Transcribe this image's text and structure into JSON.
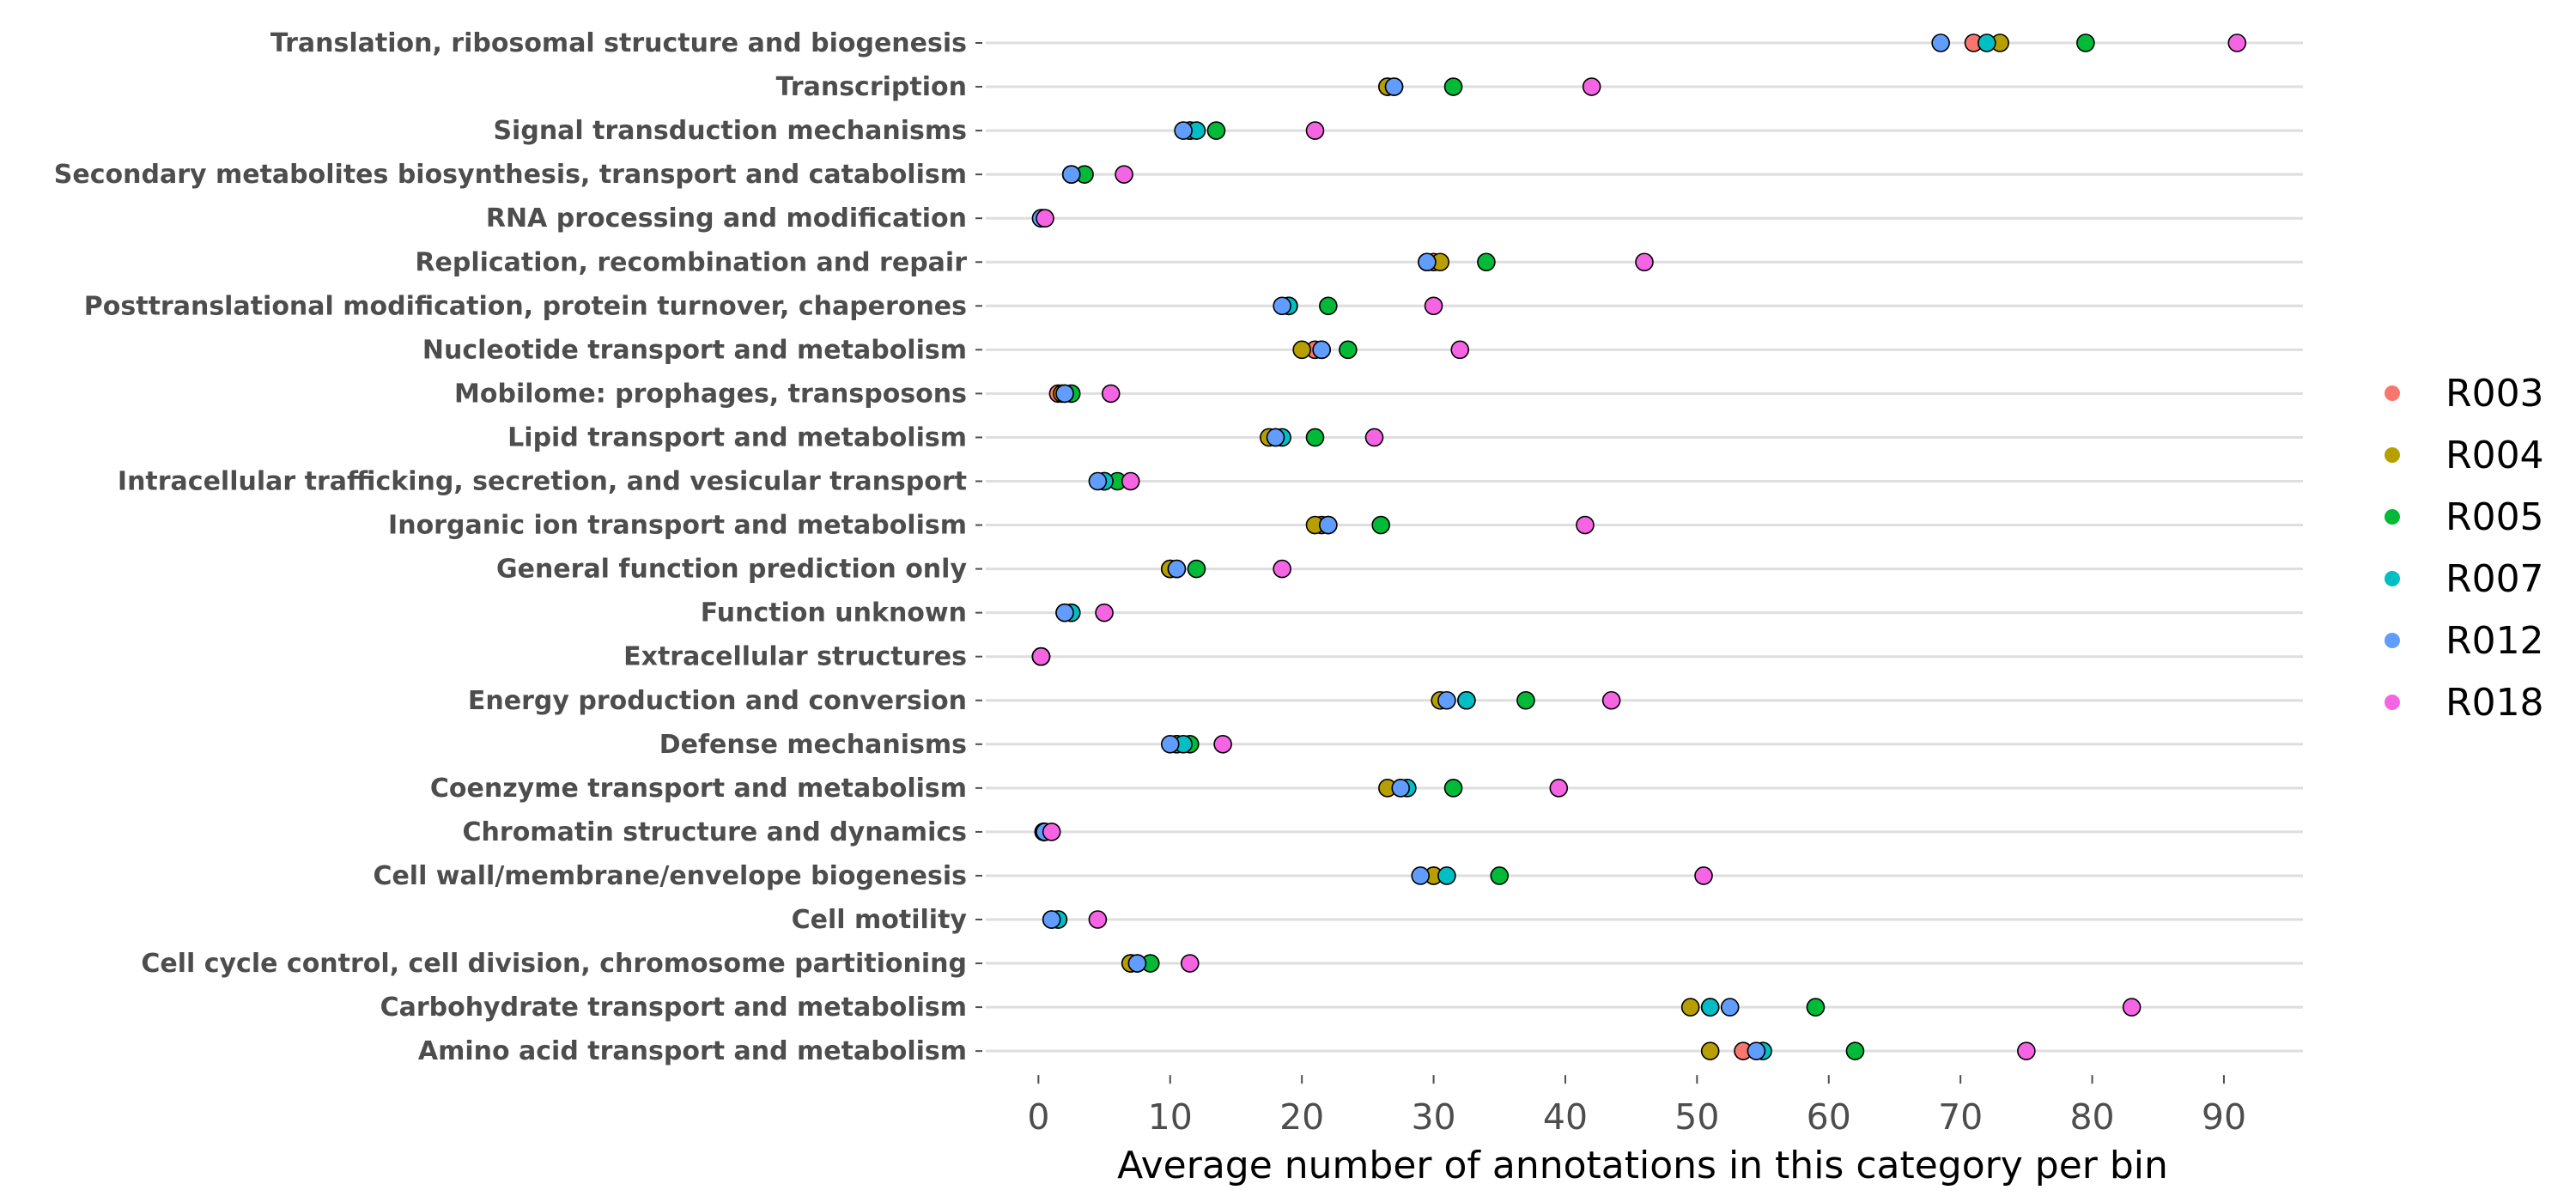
{
  "chart_data": {
    "type": "scatter",
    "xlabel": "Average number of annotations in this category per bin",
    "ylabel": "",
    "xlim": [
      -4,
      96
    ],
    "xticks": [
      0,
      10,
      20,
      30,
      40,
      50,
      60,
      70,
      80,
      90
    ],
    "grid": "horizontal",
    "legend": "right",
    "categories": [
      "Translation, ribosomal structure and biogenesis",
      "Transcription",
      "Signal transduction mechanisms",
      "Secondary metabolites biosynthesis, transport and catabolism",
      "RNA processing and modification",
      "Replication, recombination and repair",
      "Posttranslational modification, protein turnover, chaperones",
      "Nucleotide transport and metabolism",
      "Mobilome: prophages, transposons",
      "Lipid transport and metabolism",
      "Intracellular trafficking, secretion, and vesicular transport",
      "Inorganic ion transport and metabolism",
      "General function prediction only",
      "Function unknown",
      "Extracellular structures",
      "Energy production and conversion",
      "Defense mechanisms",
      "Coenzyme transport and metabolism",
      "Chromatin structure and dynamics",
      "Cell wall/membrane/envelope biogenesis",
      "Cell motility",
      "Cell cycle control, cell division, chromosome partitioning",
      "Carbohydrate transport and metabolism",
      "Amino acid transport and metabolism"
    ],
    "series": [
      {
        "name": "R003",
        "color": "#F8766D",
        "values": [
          71.0,
          26.5,
          11.5,
          2.5,
          0.3,
          30.0,
          19.0,
          21.0,
          1.5,
          18.0,
          5.0,
          21.5,
          10.0,
          2.0,
          0.2,
          32.5,
          10.5,
          27.5,
          0.4,
          30.0,
          1.0,
          7.0,
          51.0,
          53.5
        ]
      },
      {
        "name": "R004",
        "color": "#B79F00",
        "values": [
          73.0,
          26.5,
          11.5,
          2.5,
          0.3,
          30.5,
          19.0,
          20.0,
          1.8,
          17.5,
          5.0,
          21.0,
          10.0,
          2.0,
          0.2,
          30.5,
          10.5,
          26.5,
          0.4,
          30.0,
          1.0,
          7.0,
          49.5,
          51.0
        ]
      },
      {
        "name": "R005",
        "color": "#00BA38",
        "values": [
          79.5,
          31.5,
          13.5,
          3.5,
          0.3,
          34.0,
          22.0,
          23.5,
          2.5,
          21.0,
          6.0,
          26.0,
          12.0,
          2.5,
          0.2,
          37.0,
          11.5,
          31.5,
          0.4,
          35.0,
          1.5,
          8.5,
          59.0,
          62.0
        ]
      },
      {
        "name": "R007",
        "color": "#00BFC4",
        "values": [
          72.0,
          27.0,
          12.0,
          2.5,
          0.3,
          29.5,
          19.0,
          21.5,
          2.0,
          18.5,
          5.0,
          22.0,
          10.5,
          2.5,
          0.2,
          32.5,
          11.0,
          28.0,
          0.4,
          31.0,
          1.5,
          7.5,
          51.0,
          55.0
        ]
      },
      {
        "name": "R012",
        "color": "#619CFF",
        "values": [
          68.5,
          27.0,
          11.0,
          2.5,
          0.2,
          29.5,
          18.5,
          21.5,
          2.0,
          18.0,
          4.5,
          22.0,
          10.5,
          2.0,
          0.2,
          31.0,
          10.0,
          27.5,
          0.5,
          29.0,
          1.0,
          7.5,
          52.5,
          54.5
        ]
      },
      {
        "name": "R018",
        "color": "#F564E3",
        "values": [
          91.0,
          42.0,
          21.0,
          6.5,
          0.5,
          46.0,
          30.0,
          32.0,
          5.5,
          25.5,
          7.0,
          41.5,
          18.5,
          5.0,
          0.2,
          43.5,
          14.0,
          39.5,
          1.0,
          50.5,
          4.5,
          11.5,
          83.0,
          75.0
        ]
      }
    ]
  }
}
